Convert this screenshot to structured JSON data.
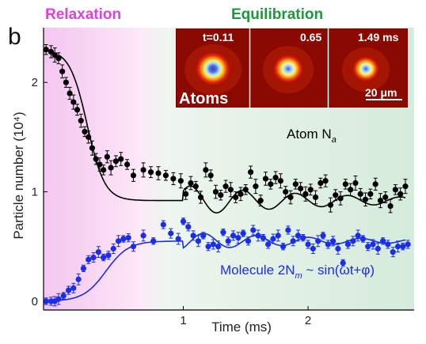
{
  "chart_data": {
    "type": "scatter",
    "panel_label": "b",
    "xlabel": "Time (ms)",
    "ylabel": "Particle number (10⁴)",
    "xlim": [
      -0.12,
      2.85
    ],
    "ylim": [
      -0.08,
      2.5
    ],
    "xticks": [
      1,
      2
    ],
    "yticks": [
      0,
      1,
      2
    ],
    "phases": [
      {
        "label": "Relaxation",
        "color": "#e040e0"
      },
      {
        "label": "Equilibration",
        "color": "#1a9a3a"
      }
    ],
    "series": [
      {
        "name": "Atom N",
        "name_subscript": "a",
        "color": "#000000",
        "x": [
          -0.1,
          -0.06,
          -0.03,
          0.0,
          0.03,
          0.06,
          0.09,
          0.12,
          0.15,
          0.18,
          0.21,
          0.24,
          0.27,
          0.3,
          0.33,
          0.36,
          0.39,
          0.42,
          0.46,
          0.5,
          0.55,
          0.6,
          0.68,
          0.74,
          0.8,
          0.86,
          0.92,
          0.98,
          1.02,
          1.06,
          1.1,
          1.14,
          1.18,
          1.22,
          1.26,
          1.3,
          1.34,
          1.38,
          1.42,
          1.46,
          1.5,
          1.54,
          1.58,
          1.62,
          1.66,
          1.7,
          1.74,
          1.78,
          1.82,
          1.86,
          1.9,
          1.94,
          1.98,
          2.02,
          2.06,
          2.1,
          2.14,
          2.18,
          2.22,
          2.26,
          2.3,
          2.34,
          2.38,
          2.42,
          2.46,
          2.5,
          2.54,
          2.58,
          2.62,
          2.66,
          2.7,
          2.74,
          2.78
        ],
        "y": [
          2.3,
          2.28,
          2.25,
          2.22,
          2.1,
          2.0,
          1.9,
          1.82,
          1.75,
          1.65,
          1.55,
          1.5,
          1.4,
          1.3,
          1.25,
          1.2,
          1.32,
          1.22,
          1.28,
          1.3,
          1.25,
          1.15,
          1.2,
          1.18,
          1.17,
          1.15,
          1.12,
          1.1,
          0.98,
          1.08,
          1.05,
          0.95,
          1.2,
          1.15,
          1.0,
          0.97,
          1.05,
          1.02,
          0.95,
          0.98,
          1.02,
          1.18,
          1.05,
          0.92,
          1.12,
          1.07,
          1.13,
          1.1,
          1.0,
          0.95,
          1.07,
          1.03,
          0.98,
          1.02,
          0.95,
          1.08,
          1.1,
          0.88,
          0.97,
          0.94,
          1.07,
          1.02,
          1.08,
          0.98,
          0.93,
          0.98,
          1.07,
          0.92,
          0.95,
          0.87,
          1.02,
          0.98,
          1.05
        ],
        "fit_formula": "0.92 + 1.38/(1+exp((t-0.23)/0.07)) + 0.14*exp(-(t-1)/1.2)*cos(2*pi*(t-1.06)/0.42) for t>=1"
      },
      {
        "name": "Molecule 2N",
        "name_subscript": "m",
        "name_suffix": " ~ sin(ωt+φ)",
        "color": "#1a2ee8",
        "x": [
          -0.1,
          -0.06,
          -0.03,
          0.0,
          0.04,
          0.08,
          0.12,
          0.16,
          0.2,
          0.24,
          0.28,
          0.32,
          0.36,
          0.4,
          0.44,
          0.48,
          0.52,
          0.56,
          0.6,
          0.68,
          0.76,
          0.84,
          0.9,
          0.96,
          1.0,
          1.04,
          1.08,
          1.12,
          1.16,
          1.2,
          1.24,
          1.28,
          1.32,
          1.36,
          1.4,
          1.44,
          1.48,
          1.52,
          1.56,
          1.6,
          1.64,
          1.68,
          1.72,
          1.76,
          1.8,
          1.84,
          1.88,
          1.92,
          1.96,
          2.0,
          2.04,
          2.08,
          2.12,
          2.16,
          2.2,
          2.24,
          2.28,
          2.32,
          2.36,
          2.4,
          2.44,
          2.48,
          2.52,
          2.56,
          2.6,
          2.64,
          2.68,
          2.72,
          2.76,
          2.8
        ],
        "y": [
          0.0,
          0.0,
          0.0,
          0.02,
          0.05,
          0.1,
          0.12,
          0.2,
          0.3,
          0.38,
          0.4,
          0.45,
          0.4,
          0.42,
          0.48,
          0.55,
          0.57,
          0.58,
          0.5,
          0.6,
          0.55,
          0.7,
          0.62,
          0.57,
          0.73,
          0.68,
          0.6,
          0.55,
          0.6,
          0.5,
          0.52,
          0.5,
          0.63,
          0.55,
          0.6,
          0.58,
          0.62,
          0.55,
          0.65,
          0.6,
          0.58,
          0.52,
          0.57,
          0.6,
          0.5,
          0.65,
          0.55,
          0.6,
          0.58,
          0.52,
          0.48,
          0.55,
          0.6,
          0.52,
          0.55,
          0.48,
          0.35,
          0.52,
          0.55,
          0.6,
          0.57,
          0.5,
          0.52,
          0.48,
          0.55,
          0.52,
          0.45,
          0.5,
          0.5,
          0.52
        ],
        "fit_formula": "0.55/(1+exp(-(t-0.38)/0.09)) + 0.08*exp(-(t-1)/1.2)*sin(2*pi*(t-1.06)/0.42) for t>=1"
      }
    ],
    "inset": {
      "timestamps": [
        "t=0.11",
        "0.65",
        "1.49 ms"
      ],
      "label": "Atoms",
      "scale_bar_label": "20 μm"
    }
  }
}
